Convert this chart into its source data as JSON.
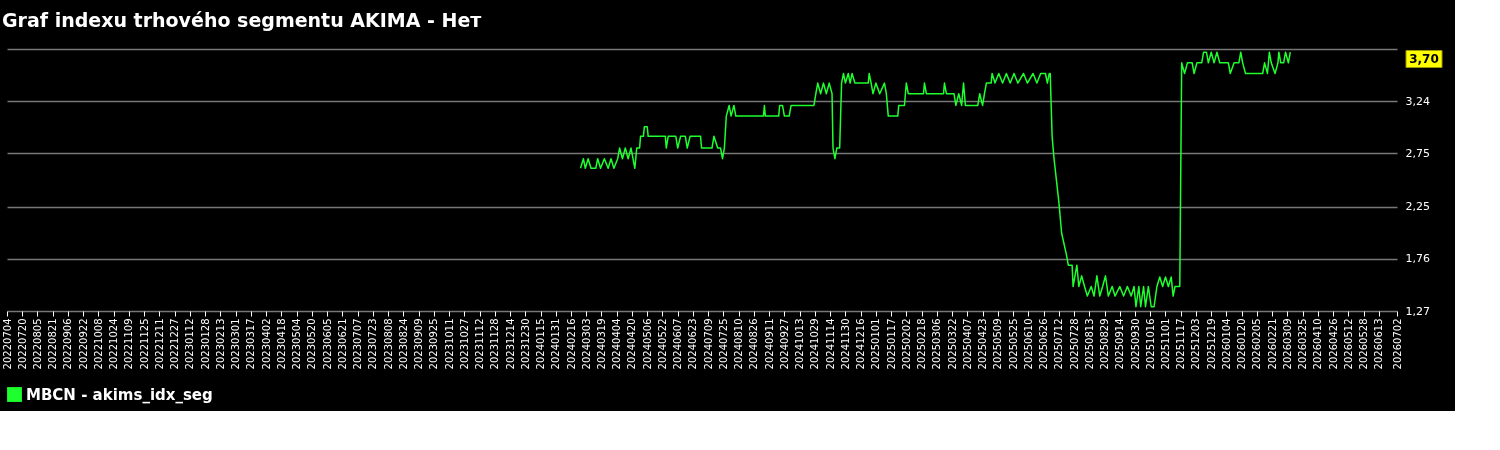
{
  "chart_data": {
    "type": "line",
    "title": "Graf indexu trhového segmentu AKIMA - Нет",
    "xlim": [
      "2022-07-04",
      "2026-07-02"
    ],
    "xticks": [
      {
        "value": "2022-07-04",
        "label": "20220704"
      },
      {
        "value": "2022-07-20",
        "label": "20220720"
      },
      {
        "value": "2022-08-05",
        "label": "20220805"
      },
      {
        "value": "2022-08-21",
        "label": "20220821"
      },
      {
        "value": "2022-09-06",
        "label": "20220906"
      },
      {
        "value": "2022-09-22",
        "label": "20220922"
      },
      {
        "value": "2022-10-08",
        "label": "20221008"
      },
      {
        "value": "2022-10-24",
        "label": "20221024"
      },
      {
        "value": "2022-11-09",
        "label": "20221109"
      },
      {
        "value": "2022-11-25",
        "label": "20221125"
      },
      {
        "value": "2022-12-11",
        "label": "20221211"
      },
      {
        "value": "2022-12-27",
        "label": "20221227"
      },
      {
        "value": "2023-01-12",
        "label": "20230112"
      },
      {
        "value": "2023-01-28",
        "label": "20230128"
      },
      {
        "value": "2023-02-13",
        "label": "20230213"
      },
      {
        "value": "2023-03-01",
        "label": "20230301"
      },
      {
        "value": "2023-03-17",
        "label": "20230317"
      },
      {
        "value": "2023-04-02",
        "label": "20230402"
      },
      {
        "value": "2023-04-18",
        "label": "20230418"
      },
      {
        "value": "2023-05-04",
        "label": "20230504"
      },
      {
        "value": "2023-05-20",
        "label": "20230520"
      },
      {
        "value": "2023-06-05",
        "label": "20230605"
      },
      {
        "value": "2023-06-21",
        "label": "20230621"
      },
      {
        "value": "2023-07-07",
        "label": "20230707"
      },
      {
        "value": "2023-07-23",
        "label": "20230723"
      },
      {
        "value": "2023-08-08",
        "label": "20230808"
      },
      {
        "value": "2023-08-24",
        "label": "20230824"
      },
      {
        "value": "2023-09-09",
        "label": "20230909"
      },
      {
        "value": "2023-09-25",
        "label": "20230925"
      },
      {
        "value": "2023-10-11",
        "label": "20231011"
      },
      {
        "value": "2023-10-27",
        "label": "20231027"
      },
      {
        "value": "2023-11-12",
        "label": "20231112"
      },
      {
        "value": "2023-11-28",
        "label": "20231128"
      },
      {
        "value": "2023-12-14",
        "label": "20231214"
      },
      {
        "value": "2023-12-30",
        "label": "20231230"
      },
      {
        "value": "2024-01-15",
        "label": "20240115"
      },
      {
        "value": "2024-01-31",
        "label": "20240131"
      },
      {
        "value": "2024-02-16",
        "label": "20240216"
      },
      {
        "value": "2024-03-03",
        "label": "20240303"
      },
      {
        "value": "2024-03-19",
        "label": "20240319"
      },
      {
        "value": "2024-04-04",
        "label": "20240404"
      },
      {
        "value": "2024-04-20",
        "label": "20240420"
      },
      {
        "value": "2024-05-06",
        "label": "20240506"
      },
      {
        "value": "2024-05-22",
        "label": "20240522"
      },
      {
        "value": "2024-06-07",
        "label": "20240607"
      },
      {
        "value": "2024-06-23",
        "label": "20240623"
      },
      {
        "value": "2024-07-09",
        "label": "20240709"
      },
      {
        "value": "2024-07-25",
        "label": "20240725"
      },
      {
        "value": "2024-08-10",
        "label": "20240810"
      },
      {
        "value": "2024-08-26",
        "label": "20240826"
      },
      {
        "value": "2024-09-11",
        "label": "20240911"
      },
      {
        "value": "2024-09-27",
        "label": "20240927"
      },
      {
        "value": "2024-10-13",
        "label": "20241013"
      },
      {
        "value": "2024-10-29",
        "label": "20241029"
      },
      {
        "value": "2024-11-14",
        "label": "20241114"
      },
      {
        "value": "2024-11-30",
        "label": "20241130"
      },
      {
        "value": "2024-12-16",
        "label": "20241216"
      },
      {
        "value": "2025-01-01",
        "label": "20250101"
      },
      {
        "value": "2025-01-17",
        "label": "20250117"
      },
      {
        "value": "2025-02-02",
        "label": "20250202"
      },
      {
        "value": "2025-02-18",
        "label": "20250218"
      },
      {
        "value": "2025-03-06",
        "label": "20250306"
      },
      {
        "value": "2025-03-22",
        "label": "20250322"
      },
      {
        "value": "2025-04-07",
        "label": "20250407"
      },
      {
        "value": "2025-04-23",
        "label": "20250423"
      },
      {
        "value": "2025-05-09",
        "label": "20250509"
      },
      {
        "value": "2025-05-25",
        "label": "20250525"
      },
      {
        "value": "2025-06-10",
        "label": "20250610"
      },
      {
        "value": "2025-06-26",
        "label": "20250626"
      },
      {
        "value": "2025-07-12",
        "label": "20250712"
      },
      {
        "value": "2025-07-28",
        "label": "20250728"
      },
      {
        "value": "2025-08-13",
        "label": "20250813"
      },
      {
        "value": "2025-08-29",
        "label": "20250829"
      },
      {
        "value": "2025-09-14",
        "label": "20250914"
      },
      {
        "value": "2025-09-30",
        "label": "20250930"
      },
      {
        "value": "2025-10-16",
        "label": "20251016"
      },
      {
        "value": "2025-11-01",
        "label": "20251101"
      },
      {
        "value": "2025-11-17",
        "label": "20251117"
      },
      {
        "value": "2025-12-03",
        "label": "20251203"
      },
      {
        "value": "2025-12-19",
        "label": "20251219"
      },
      {
        "value": "2026-01-04",
        "label": "20260104"
      },
      {
        "value": "2026-01-20",
        "label": "20260120"
      },
      {
        "value": "2026-02-05",
        "label": "20260205"
      },
      {
        "value": "2026-02-21",
        "label": "20260221"
      },
      {
        "value": "2026-03-09",
        "label": "20260309"
      },
      {
        "value": "2026-03-25",
        "label": "20260325"
      },
      {
        "value": "2026-04-10",
        "label": "20260410"
      },
      {
        "value": "2026-04-26",
        "label": "20260426"
      },
      {
        "value": "2026-05-12",
        "label": "20260512"
      },
      {
        "value": "2026-05-28",
        "label": "20260528"
      },
      {
        "value": "2026-06-13",
        "label": "20260613"
      },
      {
        "value": "2026-07-02",
        "label": "20260702"
      }
    ],
    "ylim": [
      1.27,
      3.73
    ],
    "yticks": [
      {
        "value": 1.27,
        "label": "1,27"
      },
      {
        "value": 1.76,
        "label": "1,76"
      },
      {
        "value": 2.25,
        "label": "2,25"
      },
      {
        "value": 2.75,
        "label": "2,75"
      },
      {
        "value": 3.24,
        "label": "3,24"
      },
      {
        "value": 3.73,
        "label": null
      }
    ],
    "grid": "y",
    "legend": "bottom",
    "annotations": [
      "3,70"
    ],
    "series": [
      {
        "name": "MBCN - akims_idx_seg",
        "color": "#1eff2e",
        "x": [
          "2024-02-26",
          "2024-02-29",
          "2024-03-02",
          "2024-03-05",
          "2024-03-08",
          "2024-03-13",
          "2024-03-15",
          "2024-03-18",
          "2024-03-22",
          "2024-03-26",
          "2024-03-29",
          "2024-04-01",
          "2024-04-05",
          "2024-04-07",
          "2024-04-10",
          "2024-04-13",
          "2024-04-16",
          "2024-04-19",
          "2024-04-23",
          "2024-04-25",
          "2024-04-28",
          "2024-04-29",
          "2024-05-02",
          "2024-05-03",
          "2024-05-06",
          "2024-05-07",
          "2024-05-25",
          "2024-05-26",
          "2024-05-28",
          "2024-06-05",
          "2024-06-07",
          "2024-06-10",
          "2024-06-15",
          "2024-06-17",
          "2024-06-20",
          "2024-07-01",
          "2024-07-02",
          "2024-07-13",
          "2024-07-15",
          "2024-07-19",
          "2024-07-22",
          "2024-07-24",
          "2024-07-26",
          "2024-07-28",
          "2024-07-31",
          "2024-08-02",
          "2024-08-05",
          "2024-08-07",
          "2024-09-05",
          "2024-09-06",
          "2024-09-07",
          "2024-09-21",
          "2024-09-22",
          "2024-09-25",
          "2024-09-27",
          "2024-10-02",
          "2024-10-04",
          "2024-10-28",
          "2024-10-30",
          "2024-11-01",
          "2024-11-04",
          "2024-11-07",
          "2024-11-10",
          "2024-11-13",
          "2024-11-16",
          "2024-11-17",
          "2024-11-19",
          "2024-11-21",
          "2024-11-24",
          "2024-11-26",
          "2024-11-28",
          "2024-11-30",
          "2024-12-03",
          "2024-12-05",
          "2024-12-07",
          "2024-12-10",
          "2024-12-24",
          "2024-12-25",
          "2024-12-27",
          "2024-12-29",
          "2025-01-01",
          "2025-01-05",
          "2025-01-10",
          "2025-01-12",
          "2025-01-14",
          "2025-01-24",
          "2025-01-25",
          "2025-01-31",
          "2025-02-01",
          "2025-02-02",
          "2025-02-04",
          "2025-02-20",
          "2025-02-21",
          "2025-02-23",
          "2025-03-13",
          "2025-03-14",
          "2025-03-16",
          "2025-03-24",
          "2025-03-26",
          "2025-03-29",
          "2025-04-01",
          "2025-04-03",
          "2025-04-05",
          "2025-04-18",
          "2025-04-20",
          "2025-04-23",
          "2025-04-25",
          "2025-04-27",
          "2025-05-02",
          "2025-05-03",
          "2025-05-06",
          "2025-05-10",
          "2025-05-14",
          "2025-05-18",
          "2025-05-22",
          "2025-05-26",
          "2025-05-30",
          "2025-06-05",
          "2025-06-09",
          "2025-06-15",
          "2025-06-19",
          "2025-06-23",
          "2025-06-28",
          "2025-06-30",
          "2025-07-02",
          "2025-07-03",
          "2025-07-05",
          "2025-07-07",
          "2025-07-12",
          "2025-07-15",
          "2025-07-20",
          "2025-07-22",
          "2025-07-26",
          "2025-07-27",
          "2025-07-29",
          "2025-07-31",
          "2025-08-02",
          "2025-08-05",
          "2025-08-08",
          "2025-08-11",
          "2025-08-15",
          "2025-08-18",
          "2025-08-21",
          "2025-08-24",
          "2025-08-27",
          "2025-08-30",
          "2025-09-02",
          "2025-09-06",
          "2025-09-09",
          "2025-09-14",
          "2025-09-18",
          "2025-09-22",
          "2025-09-26",
          "2025-09-29",
          "2025-10-01",
          "2025-10-04",
          "2025-10-06",
          "2025-10-09",
          "2025-10-11",
          "2025-10-14",
          "2025-10-17",
          "2025-10-20",
          "2025-10-23",
          "2025-10-26",
          "2025-10-29",
          "2025-11-01",
          "2025-11-04",
          "2025-11-07",
          "2025-11-09",
          "2025-11-11",
          "2025-11-16",
          "2025-11-18",
          "2025-11-21",
          "2025-11-24",
          "2025-11-29",
          "2025-12-01",
          "2025-12-04",
          "2025-12-09",
          "2025-12-11",
          "2025-12-14",
          "2025-12-16",
          "2025-12-19",
          "2025-12-22",
          "2025-12-25",
          "2025-12-28",
          "2026-01-06",
          "2026-01-08",
          "2026-01-12",
          "2026-01-17",
          "2026-01-19",
          "2026-01-21",
          "2026-01-24",
          "2026-02-11",
          "2026-02-13",
          "2026-02-16",
          "2026-02-18",
          "2026-02-20",
          "2026-02-24",
          "2026-02-27",
          "2026-02-28",
          "2026-03-02",
          "2026-03-05",
          "2026-03-07",
          "2026-03-10",
          "2026-03-12"
        ],
        "values": [
          2.61,
          2.7,
          2.61,
          2.7,
          2.61,
          2.61,
          2.7,
          2.61,
          2.7,
          2.61,
          2.7,
          2.61,
          2.7,
          2.8,
          2.7,
          2.8,
          2.7,
          2.8,
          2.61,
          2.8,
          2.8,
          2.91,
          2.91,
          3.0,
          3.0,
          2.91,
          2.91,
          2.8,
          2.91,
          2.91,
          2.8,
          2.91,
          2.91,
          2.8,
          2.91,
          2.91,
          2.8,
          2.8,
          2.91,
          2.8,
          2.8,
          2.7,
          2.8,
          3.1,
          3.2,
          3.1,
          3.2,
          3.1,
          3.1,
          3.2,
          3.1,
          3.1,
          3.2,
          3.2,
          3.1,
          3.1,
          3.2,
          3.2,
          3.31,
          3.41,
          3.31,
          3.41,
          3.31,
          3.41,
          3.31,
          2.8,
          2.7,
          2.8,
          2.8,
          3.41,
          3.5,
          3.41,
          3.5,
          3.41,
          3.5,
          3.41,
          3.41,
          3.5,
          3.41,
          3.31,
          3.41,
          3.31,
          3.41,
          3.31,
          3.1,
          3.1,
          3.2,
          3.2,
          3.31,
          3.41,
          3.31,
          3.31,
          3.41,
          3.31,
          3.31,
          3.41,
          3.31,
          3.31,
          3.2,
          3.31,
          3.2,
          3.41,
          3.2,
          3.2,
          3.31,
          3.2,
          3.31,
          3.41,
          3.41,
          3.5,
          3.41,
          3.5,
          3.41,
          3.5,
          3.41,
          3.5,
          3.41,
          3.5,
          3.41,
          3.5,
          3.41,
          3.5,
          3.5,
          3.41,
          3.5,
          3.5,
          2.91,
          2.7,
          2.3,
          2.0,
          1.8,
          1.7,
          1.7,
          1.5,
          1.6,
          1.7,
          1.5,
          1.6,
          1.5,
          1.41,
          1.5,
          1.41,
          1.6,
          1.41,
          1.5,
          1.6,
          1.41,
          1.5,
          1.41,
          1.5,
          1.41,
          1.5,
          1.41,
          1.5,
          1.31,
          1.5,
          1.31,
          1.5,
          1.31,
          1.5,
          1.31,
          1.31,
          1.5,
          1.59,
          1.5,
          1.59,
          1.5,
          1.59,
          1.41,
          1.5,
          1.5,
          3.6,
          3.5,
          3.6,
          3.6,
          3.5,
          3.6,
          3.6,
          3.7,
          3.7,
          3.6,
          3.7,
          3.6,
          3.7,
          3.6,
          3.6,
          3.5,
          3.6,
          3.6,
          3.7,
          3.6,
          3.5,
          3.5,
          3.6,
          3.5,
          3.7,
          3.6,
          3.5,
          3.6,
          3.7,
          3.6,
          3.6,
          3.7,
          3.6,
          3.7
        ]
      }
    ]
  }
}
